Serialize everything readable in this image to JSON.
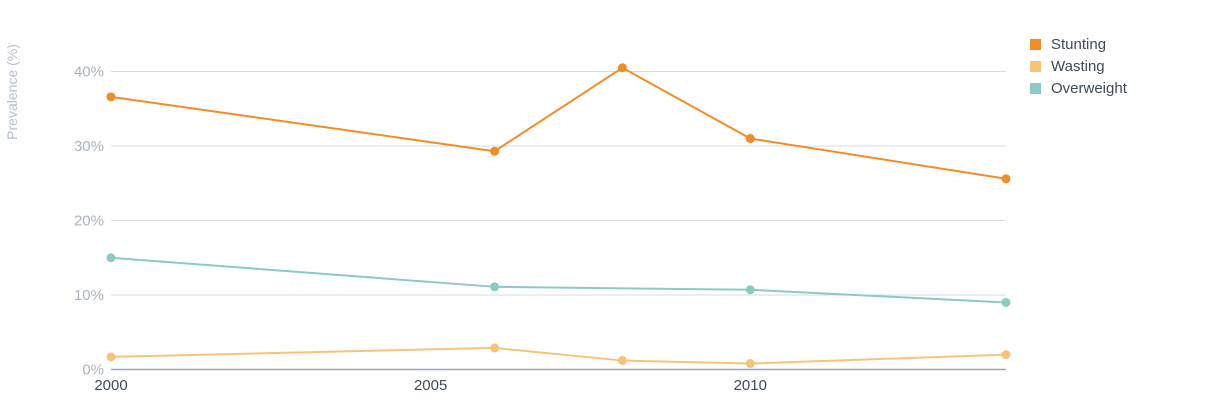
{
  "chart_data": {
    "type": "line",
    "ylabel": "Prevalence (%)",
    "xlabel": "",
    "xlim": [
      2000,
      2014
    ],
    "ylim": [
      0,
      40
    ],
    "y_ticks": [
      0,
      10,
      20,
      30,
      40
    ],
    "y_tick_labels": [
      "0%",
      "10%",
      "20%",
      "30%",
      "40%"
    ],
    "x_ticks": [
      2000,
      2005,
      2010
    ],
    "x_tick_labels": [
      "2000",
      "2005",
      "2010"
    ],
    "grid": true,
    "legend_position": "top-right",
    "series": [
      {
        "name": "Stunting",
        "color": "#f28c28",
        "points": [
          {
            "x": 2000,
            "y": 36.6
          },
          {
            "x": 2006,
            "y": 29.3
          },
          {
            "x": 2008,
            "y": 40.5
          },
          {
            "x": 2010,
            "y": 31.0
          },
          {
            "x": 2014,
            "y": 25.6
          }
        ]
      },
      {
        "name": "Wasting",
        "color": "#f9c27b",
        "points": [
          {
            "x": 2000,
            "y": 1.7
          },
          {
            "x": 2006,
            "y": 2.9
          },
          {
            "x": 2008,
            "y": 1.2
          },
          {
            "x": 2010,
            "y": 0.8
          },
          {
            "x": 2014,
            "y": 2.0
          }
        ]
      },
      {
        "name": "Overweight",
        "color": "#8ccac4",
        "points": [
          {
            "x": 2000,
            "y": 15.0
          },
          {
            "x": 2006,
            "y": 11.1
          },
          {
            "x": 2010,
            "y": 10.7
          },
          {
            "x": 2014,
            "y": 9.0
          }
        ]
      }
    ]
  }
}
